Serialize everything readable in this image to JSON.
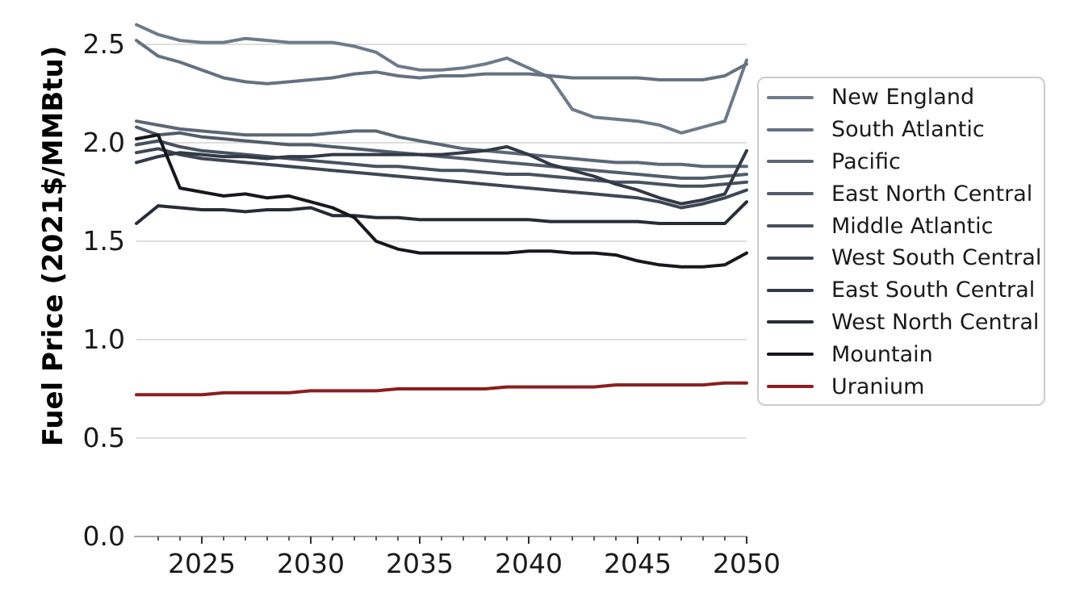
{
  "chart_data": {
    "type": "line",
    "title": "",
    "xlabel": "",
    "ylabel": "Fuel Price (2021$/MMBtu)",
    "grid": true,
    "legend_position": "right",
    "xlim": [
      2022,
      2050
    ],
    "ylim": [
      0.0,
      2.72
    ],
    "x_major_ticks": [
      2025,
      2030,
      2035,
      2040,
      2045,
      2050
    ],
    "x_minor_tick_step": 1,
    "y_ticks": [
      0.0,
      0.5,
      1.0,
      1.5,
      2.0,
      2.5
    ],
    "x": [
      2022,
      2023,
      2024,
      2025,
      2026,
      2027,
      2028,
      2029,
      2030,
      2031,
      2032,
      2033,
      2034,
      2035,
      2036,
      2037,
      2038,
      2039,
      2040,
      2041,
      2042,
      2043,
      2044,
      2045,
      2046,
      2047,
      2048,
      2049,
      2050
    ],
    "series": [
      {
        "name": "New England",
        "color": "#6e7a8a",
        "values": [
          2.6,
          2.55,
          2.52,
          2.51,
          2.51,
          2.53,
          2.52,
          2.51,
          2.51,
          2.51,
          2.49,
          2.46,
          2.39,
          2.37,
          2.37,
          2.38,
          2.4,
          2.43,
          2.38,
          2.33,
          2.17,
          2.13,
          2.12,
          2.11,
          2.09,
          2.05,
          2.08,
          2.11,
          2.42
        ]
      },
      {
        "name": "South Atlantic",
        "color": "#657181",
        "values": [
          2.52,
          2.44,
          2.41,
          2.37,
          2.33,
          2.31,
          2.3,
          2.31,
          2.32,
          2.33,
          2.35,
          2.36,
          2.34,
          2.33,
          2.34,
          2.34,
          2.35,
          2.35,
          2.35,
          2.34,
          2.33,
          2.33,
          2.33,
          2.33,
          2.32,
          2.32,
          2.32,
          2.34,
          2.4
        ]
      },
      {
        "name": "Pacific",
        "color": "#5c6777",
        "values": [
          2.11,
          2.09,
          2.07,
          2.06,
          2.05,
          2.04,
          2.04,
          2.04,
          2.04,
          2.05,
          2.06,
          2.06,
          2.03,
          2.01,
          1.99,
          1.97,
          1.96,
          1.95,
          1.94,
          1.93,
          1.92,
          1.91,
          1.9,
          1.9,
          1.89,
          1.89,
          1.88,
          1.88,
          1.88
        ]
      },
      {
        "name": "East North Central",
        "color": "#525c6b",
        "values": [
          2.08,
          2.04,
          2.05,
          2.03,
          2.02,
          2.01,
          2.0,
          1.99,
          1.99,
          1.98,
          1.97,
          1.96,
          1.95,
          1.94,
          1.93,
          1.92,
          1.91,
          1.9,
          1.89,
          1.88,
          1.87,
          1.86,
          1.85,
          1.84,
          1.83,
          1.82,
          1.82,
          1.83,
          1.84
        ]
      },
      {
        "name": "Middle Atlantic",
        "color": "#485160",
        "values": [
          1.99,
          2.01,
          1.98,
          1.96,
          1.95,
          1.94,
          1.93,
          1.92,
          1.91,
          1.9,
          1.89,
          1.88,
          1.88,
          1.87,
          1.86,
          1.86,
          1.85,
          1.84,
          1.84,
          1.83,
          1.82,
          1.81,
          1.8,
          1.8,
          1.79,
          1.78,
          1.78,
          1.79,
          1.8
        ]
      },
      {
        "name": "West South Central",
        "color": "#3e4654",
        "values": [
          1.95,
          1.97,
          1.94,
          1.92,
          1.91,
          1.9,
          1.89,
          1.88,
          1.87,
          1.86,
          1.85,
          1.84,
          1.83,
          1.82,
          1.81,
          1.8,
          1.79,
          1.78,
          1.77,
          1.76,
          1.75,
          1.74,
          1.73,
          1.72,
          1.7,
          1.67,
          1.69,
          1.72,
          1.76
        ]
      },
      {
        "name": "East South Central",
        "color": "#333a46",
        "values": [
          1.9,
          1.93,
          1.95,
          1.94,
          1.93,
          1.93,
          1.92,
          1.93,
          1.93,
          1.94,
          1.94,
          1.94,
          1.94,
          1.94,
          1.94,
          1.95,
          1.96,
          1.98,
          1.94,
          1.89,
          1.86,
          1.83,
          1.79,
          1.76,
          1.72,
          1.69,
          1.71,
          1.74,
          1.96
        ]
      },
      {
        "name": "West North Central",
        "color": "#272c35",
        "values": [
          1.59,
          1.68,
          1.67,
          1.66,
          1.66,
          1.65,
          1.66,
          1.66,
          1.67,
          1.63,
          1.63,
          1.62,
          1.62,
          1.61,
          1.61,
          1.61,
          1.61,
          1.61,
          1.61,
          1.6,
          1.6,
          1.6,
          1.6,
          1.6,
          1.59,
          1.59,
          1.59,
          1.59,
          1.7
        ]
      },
      {
        "name": "Mountain",
        "color": "#16181d",
        "values": [
          2.02,
          2.04,
          1.77,
          1.75,
          1.73,
          1.74,
          1.72,
          1.73,
          1.7,
          1.67,
          1.62,
          1.5,
          1.46,
          1.44,
          1.44,
          1.44,
          1.44,
          1.44,
          1.45,
          1.45,
          1.44,
          1.44,
          1.43,
          1.4,
          1.38,
          1.37,
          1.37,
          1.38,
          1.44
        ]
      },
      {
        "name": "Uranium",
        "color": "#8b1e1e",
        "values": [
          0.72,
          0.72,
          0.72,
          0.72,
          0.73,
          0.73,
          0.73,
          0.73,
          0.74,
          0.74,
          0.74,
          0.74,
          0.75,
          0.75,
          0.75,
          0.75,
          0.75,
          0.76,
          0.76,
          0.76,
          0.76,
          0.76,
          0.77,
          0.77,
          0.77,
          0.77,
          0.77,
          0.78,
          0.78
        ]
      }
    ],
    "style": {
      "grid_color": "#d9d9d9",
      "spine_color": "#a9a9a9",
      "tick_color": "#303030",
      "text_color": "#1a1a1a",
      "line_width": 4
    }
  }
}
